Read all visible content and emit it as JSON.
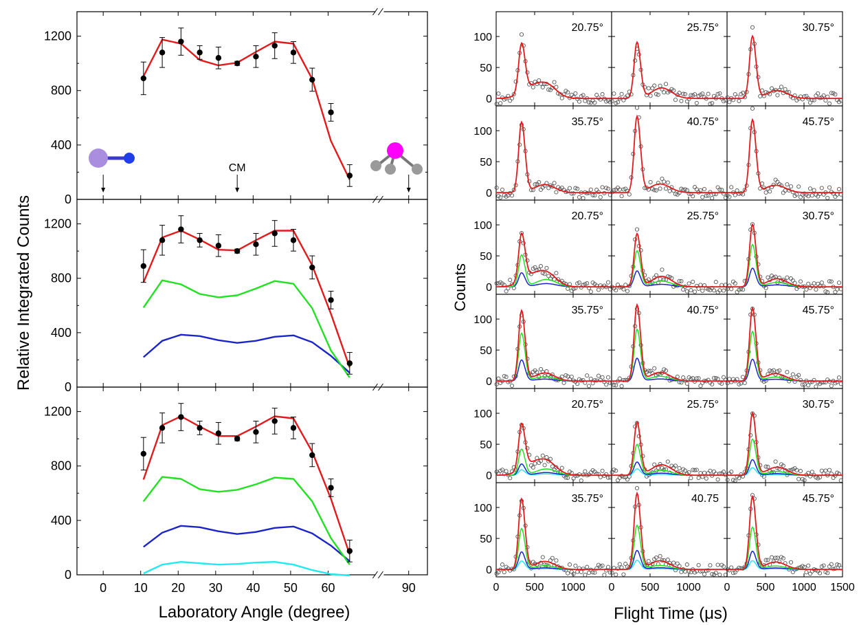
{
  "colors": {
    "total": "#e31a1c",
    "channel_a": "#22e022",
    "channel_b": "#1a24c8",
    "channel_c": "#22e8f0",
    "data": "#000000",
    "tof_marker": "#555555",
    "molecule_left_big": "#a98ee0",
    "molecule_left_small": "#1f3ee8",
    "molecule_right_center": "#ff00ff",
    "molecule_right_ligand": "#9a9a9a"
  },
  "chart_data": [
    {
      "type": "line",
      "panel": "angular-top",
      "xlabel": "Laboratory Angle (degree)",
      "ylabel": "Relative Integrated Counts",
      "xlim": [
        -7,
        95
      ],
      "x_break": [
        71,
        85
      ],
      "ylim": [
        0,
        1380
      ],
      "x_ticks": [
        0,
        10,
        20,
        30,
        40,
        50,
        60,
        90
      ],
      "y_ticks": [
        0,
        400,
        800,
        1200
      ],
      "annotations": [
        {
          "text": "CM",
          "x": 35.75
        }
      ],
      "arrow_angles": [
        0,
        35.75,
        90
      ],
      "data_points": {
        "x": [
          10.75,
          15.75,
          20.75,
          25.75,
          30.75,
          35.75,
          40.75,
          45.75,
          50.75,
          55.75,
          60.75,
          65.75
        ],
        "y": [
          890,
          1080,
          1160,
          1080,
          1040,
          1000,
          1050,
          1130,
          1080,
          880,
          640,
          175
        ],
        "err": [
          120,
          110,
          100,
          50,
          80,
          15,
          80,
          95,
          80,
          85,
          65,
          80
        ]
      },
      "series": [
        {
          "name": "total",
          "x": [
            10.75,
            15.75,
            20.75,
            25.75,
            30.75,
            35.75,
            40.75,
            45.75,
            50.75,
            55.75,
            60.75,
            65.75
          ],
          "y": [
            905,
            1175,
            1145,
            1025,
            985,
            1005,
            1085,
            1160,
            1145,
            885,
            430,
            145
          ]
        }
      ]
    },
    {
      "type": "line",
      "panel": "angular-middle",
      "xlim": [
        -7,
        95
      ],
      "x_break": [
        71,
        85
      ],
      "ylim": [
        0,
        1380
      ],
      "y_ticks": [
        0,
        400,
        800,
        1200
      ],
      "data_points": {
        "x": [
          10.75,
          15.75,
          20.75,
          25.75,
          30.75,
          35.75,
          40.75,
          45.75,
          50.75,
          55.75,
          60.75,
          65.75
        ],
        "y": [
          890,
          1080,
          1160,
          1080,
          1040,
          1000,
          1050,
          1130,
          1080,
          880,
          640,
          175
        ],
        "err": [
          120,
          110,
          100,
          50,
          80,
          15,
          80,
          95,
          80,
          85,
          65,
          80
        ]
      },
      "series": [
        {
          "name": "total",
          "x": [
            10.75,
            15.75,
            20.75,
            25.75,
            30.75,
            35.75,
            40.75,
            45.75,
            50.75,
            55.75,
            60.75,
            65.75
          ],
          "y": [
            770,
            1100,
            1150,
            1085,
            1010,
            1005,
            1080,
            1150,
            1150,
            895,
            540,
            145
          ]
        },
        {
          "name": "channel_a",
          "x": [
            10.75,
            15.75,
            20.75,
            25.75,
            30.75,
            35.75,
            40.75,
            45.75,
            50.75,
            55.75,
            60.75,
            65.75
          ],
          "y": [
            585,
            785,
            755,
            685,
            660,
            675,
            725,
            780,
            760,
            580,
            270,
            70
          ]
        },
        {
          "name": "channel_b",
          "x": [
            10.75,
            15.75,
            20.75,
            25.75,
            30.75,
            35.75,
            40.75,
            45.75,
            50.75,
            55.75,
            60.75,
            65.75
          ],
          "y": [
            220,
            340,
            385,
            375,
            345,
            325,
            340,
            370,
            380,
            330,
            230,
            105
          ]
        }
      ]
    },
    {
      "type": "line",
      "panel": "angular-bottom",
      "xlim": [
        -7,
        95
      ],
      "x_break": [
        71,
        85
      ],
      "ylim": [
        0,
        1380
      ],
      "y_ticks": [
        0,
        400,
        800,
        1200
      ],
      "data_points": {
        "x": [
          10.75,
          15.75,
          20.75,
          25.75,
          30.75,
          35.75,
          40.75,
          45.75,
          50.75,
          55.75,
          60.75,
          65.75
        ],
        "y": [
          890,
          1080,
          1160,
          1080,
          1040,
          1000,
          1050,
          1130,
          1080,
          880,
          640,
          175
        ],
        "err": [
          120,
          110,
          100,
          50,
          80,
          15,
          80,
          95,
          80,
          85,
          65,
          80
        ]
      },
      "series": [
        {
          "name": "total",
          "x": [
            10.75,
            15.75,
            20.75,
            25.75,
            30.75,
            35.75,
            40.75,
            45.75,
            50.75,
            55.75,
            60.75,
            65.75
          ],
          "y": [
            700,
            1100,
            1165,
            1090,
            1020,
            1020,
            1090,
            1165,
            1150,
            905,
            560,
            150
          ]
        },
        {
          "name": "channel_a",
          "x": [
            10.75,
            15.75,
            20.75,
            25.75,
            30.75,
            35.75,
            40.75,
            45.75,
            50.75,
            55.75,
            60.75,
            65.75
          ],
          "y": [
            540,
            720,
            705,
            630,
            610,
            625,
            665,
            715,
            705,
            540,
            270,
            75
          ]
        },
        {
          "name": "channel_b",
          "x": [
            10.75,
            15.75,
            20.75,
            25.75,
            30.75,
            35.75,
            40.75,
            45.75,
            50.75,
            55.75,
            60.75,
            65.75
          ],
          "y": [
            205,
            310,
            360,
            350,
            320,
            300,
            315,
            345,
            355,
            305,
            215,
            100
          ]
        },
        {
          "name": "channel_c",
          "x": [
            10.75,
            15.75,
            20.75,
            25.75,
            30.75,
            35.75,
            40.75,
            45.75,
            50.75,
            55.75,
            60.75,
            65.75
          ],
          "y": [
            10,
            75,
            95,
            85,
            75,
            80,
            90,
            95,
            75,
            35,
            5,
            -5
          ]
        }
      ]
    },
    {
      "type": "line",
      "panel": "tof-grid",
      "xlabel": "Flight Time (μs)",
      "ylabel": "Counts",
      "xlim": [
        0,
        1500
      ],
      "ylim": [
        -12,
        140
      ],
      "x_ticks": [
        0,
        500,
        1000
      ],
      "x_tick_labels": [
        "0",
        "500",
        "1000"
      ],
      "last_x_tick_label": "1500",
      "y_ticks": [
        0,
        50,
        100
      ],
      "angle_labels": [
        [
          "20.75°",
          "25.75°",
          "30.75°"
        ],
        [
          "35.75°",
          "40.75°",
          "45.75°"
        ],
        [
          "20.75°",
          "25.75°",
          "30.75°"
        ],
        [
          "35.75°",
          "40.75°",
          "45.75°"
        ],
        [
          "20.75°",
          "25.75°",
          "30.75°"
        ],
        [
          "35.75°",
          "40.75",
          "45.75°"
        ]
      ],
      "components_per_row": [
        1,
        1,
        3,
        3,
        4,
        4
      ],
      "peak_heights": [
        [
          78,
          90,
          100
        ],
        [
          113,
          122,
          117
        ],
        [
          75,
          85,
          100
        ],
        [
          113,
          122,
          117
        ],
        [
          72,
          85,
          100
        ],
        [
          113,
          122,
          117
        ]
      ],
      "slow_amplitude": [
        [
          22,
          17,
          13
        ],
        [
          13,
          14,
          12
        ],
        [
          22,
          17,
          13
        ],
        [
          13,
          14,
          12
        ],
        [
          22,
          17,
          13
        ],
        [
          13,
          14,
          12
        ]
      ],
      "peak_time": 330,
      "slow_time": 650
    }
  ]
}
